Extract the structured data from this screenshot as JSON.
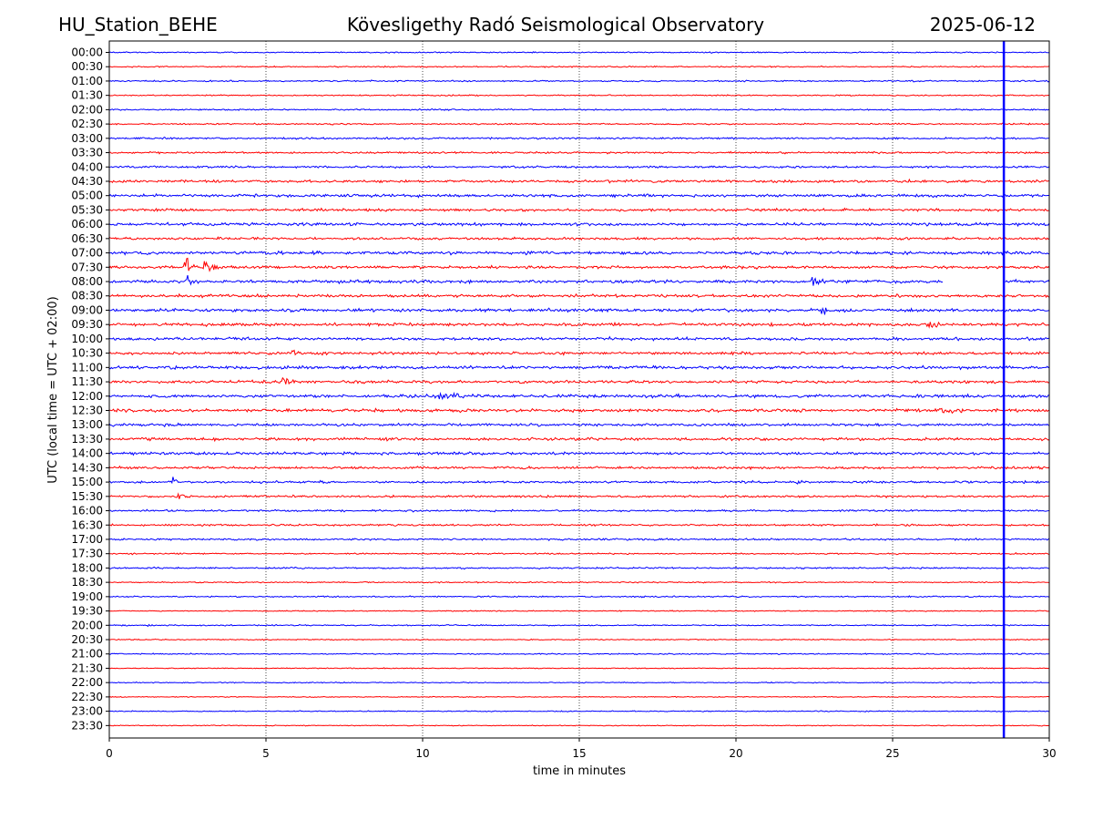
{
  "header": {
    "station": "HU_Station_BEHE",
    "title": "Kövesligethy Radó Seismological Observatory",
    "date": "2025-06-12"
  },
  "chart_data": {
    "type": "line",
    "xlabel": "time in minutes",
    "ylabel": "UTC (local time = UTC + 02:00)",
    "xlim": [
      0,
      30
    ],
    "x_ticks": [
      "0",
      "5",
      "10",
      "15",
      "20",
      "25",
      "30"
    ],
    "x_tick_values": [
      0,
      5,
      10,
      15,
      20,
      25,
      30
    ],
    "grid": "vertical dotted at x ticks",
    "rows": [
      "00:00",
      "00:30",
      "01:00",
      "01:30",
      "02:00",
      "02:30",
      "03:00",
      "03:30",
      "04:00",
      "04:30",
      "05:00",
      "05:30",
      "06:00",
      "06:30",
      "07:00",
      "07:30",
      "08:00",
      "08:30",
      "09:00",
      "09:30",
      "10:00",
      "10:30",
      "11:00",
      "11:30",
      "12:00",
      "12:30",
      "13:00",
      "13:30",
      "14:00",
      "14:30",
      "15:00",
      "15:30",
      "16:00",
      "16:30",
      "17:00",
      "17:30",
      "18:00",
      "18:30",
      "19:00",
      "19:30",
      "20:00",
      "20:30",
      "21:00",
      "21:30",
      "22:00",
      "22:30",
      "23:00",
      "23:30"
    ],
    "row_colors": [
      "#0000ff",
      "#ff0000"
    ],
    "row_noise_amplitude": [
      1.2,
      1.2,
      1.4,
      1.2,
      1.4,
      1.4,
      1.8,
      1.8,
      2.0,
      2.6,
      2.8,
      2.6,
      3.0,
      2.4,
      3.0,
      2.8,
      3.0,
      2.8,
      3.2,
      3.0,
      3.0,
      2.8,
      3.0,
      2.8,
      3.0,
      3.0,
      2.6,
      2.8,
      2.6,
      2.4,
      2.2,
      2.0,
      1.8,
      1.8,
      1.8,
      1.4,
      1.6,
      1.2,
      1.4,
      1.0,
      1.2,
      1.0,
      1.2,
      0.9,
      1.0,
      0.9,
      1.0,
      0.9
    ],
    "events": [
      {
        "row": "07:30",
        "x": 2.45,
        "amplitude": 26,
        "duration": 0.5
      },
      {
        "row": "07:30",
        "x": 3.1,
        "amplitude": 22,
        "duration": 0.5
      },
      {
        "row": "08:00",
        "x": 2.5,
        "amplitude": 10,
        "duration": 0.4
      },
      {
        "row": "08:00",
        "x": 22.5,
        "amplitude": 10,
        "duration": 0.4
      },
      {
        "row": "09:00",
        "x": 22.8,
        "amplitude": 8,
        "duration": 0.5
      },
      {
        "row": "09:30",
        "x": 26.2,
        "amplitude": 8,
        "duration": 0.9
      },
      {
        "row": "10:30",
        "x": 5.9,
        "amplitude": 7,
        "duration": 0.9
      },
      {
        "row": "11:30",
        "x": 5.6,
        "amplitude": 6,
        "duration": 1.0
      },
      {
        "row": "12:00",
        "x": 10.6,
        "amplitude": 7,
        "duration": 2.0
      },
      {
        "row": "12:30",
        "x": 26.5,
        "amplitude": 6,
        "duration": 1.4
      },
      {
        "row": "15:00",
        "x": 2.1,
        "amplitude": 6,
        "duration": 0.3
      },
      {
        "row": "15:00",
        "x": 22.0,
        "amplitude": 5,
        "duration": 0.4
      },
      {
        "row": "15:30",
        "x": 2.2,
        "amplitude": 6,
        "duration": 0.6
      },
      {
        "row": "20:00",
        "x": 1.3,
        "amplitude": 4,
        "duration": 0.2
      }
    ],
    "data_gap": {
      "row": "08:00",
      "from": 26.6,
      "to": 28.6
    },
    "marker_line": {
      "x": 28.55,
      "color": "#0000ff"
    }
  }
}
